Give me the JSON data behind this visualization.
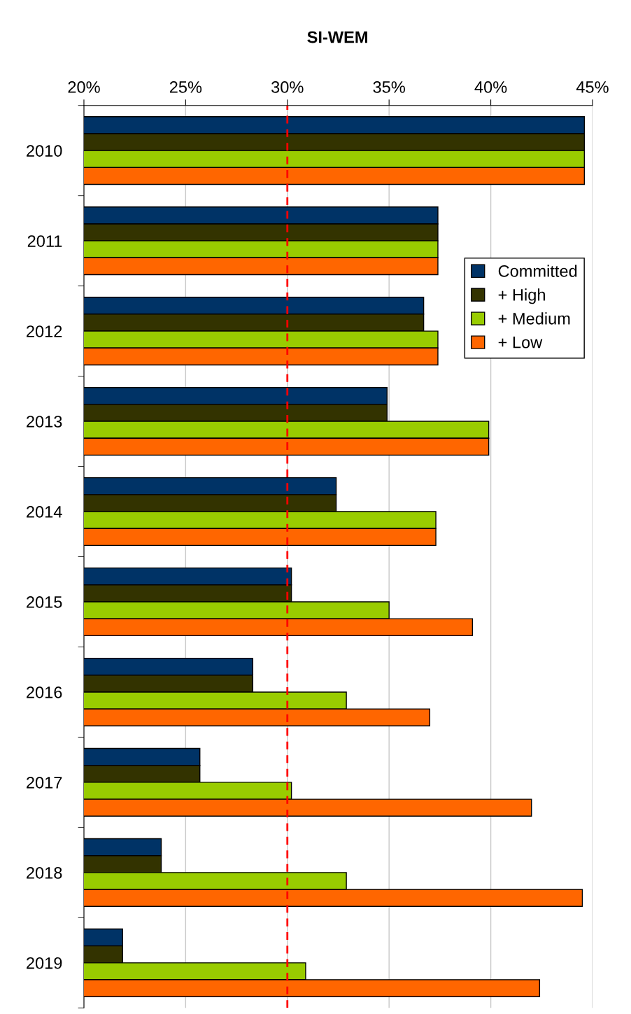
{
  "chart_data": {
    "type": "bar",
    "orientation": "horizontal",
    "title": "SI-WEM",
    "categories": [
      "2010",
      "2011",
      "2012",
      "2013",
      "2014",
      "2015",
      "2016",
      "2017",
      "2018",
      "2019"
    ],
    "series": [
      {
        "name": "Committed",
        "color": "#003366",
        "values": [
          44.6,
          37.4,
          36.7,
          34.9,
          32.4,
          30.2,
          28.3,
          25.7,
          23.8,
          21.9
        ]
      },
      {
        "name": "+ High",
        "color": "#333300",
        "values": [
          44.6,
          37.4,
          36.7,
          34.9,
          32.4,
          30.2,
          28.3,
          25.7,
          23.8,
          21.9
        ]
      },
      {
        "name": "+ Medium",
        "color": "#99cc00",
        "values": [
          44.6,
          37.4,
          37.4,
          39.9,
          37.3,
          35.0,
          32.9,
          30.2,
          32.9,
          30.9
        ]
      },
      {
        "name": "+ Low",
        "color": "#ff6600",
        "values": [
          44.6,
          37.4,
          37.4,
          39.9,
          37.3,
          39.1,
          37.0,
          42.0,
          44.5,
          42.4
        ]
      }
    ],
    "xlim": [
      20,
      45
    ],
    "xticks": [
      {
        "value": 20,
        "label": "20%"
      },
      {
        "value": 25,
        "label": "25%"
      },
      {
        "value": 30,
        "label": "30%"
      },
      {
        "value": 35,
        "label": "35%"
      },
      {
        "value": 40,
        "label": "40%"
      },
      {
        "value": 45,
        "label": "45%"
      }
    ],
    "ref_lines": [
      {
        "axis": "x",
        "value": 30,
        "color": "#ff0000",
        "line_style": "dashed"
      }
    ],
    "grid": "x",
    "legend": "right"
  }
}
